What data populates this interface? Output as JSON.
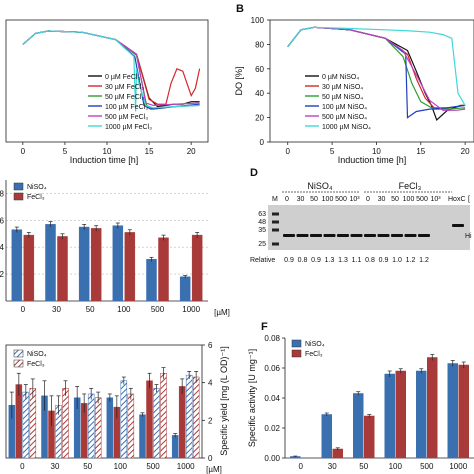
{
  "panels": {
    "a": {
      "letter": "",
      "xlabel": "Induction time [h]",
      "xticks": [
        "0",
        "5",
        "10",
        "15",
        "20"
      ],
      "xlim": [
        -2,
        22
      ],
      "ylim": [
        0,
        100
      ],
      "legend": [
        "0 µM FeCl₃",
        "30 µM FeCl₃",
        "50 µM FeCl₃",
        "100 µM FeCl₃",
        "500 µM FeCl₃",
        "1000 µM FeCl₃"
      ],
      "colors": [
        "#111111",
        "#d62728",
        "#2ca02c",
        "#1f3fbf",
        "#c040c0",
        "#3fd8d8"
      ]
    },
    "b": {
      "letter": "B",
      "ylabel": "DO [%]",
      "xlabel": "Induction time [h]",
      "yticks": [
        "0",
        "20",
        "40",
        "60",
        "80",
        "100"
      ],
      "xticks": [
        "0",
        "5",
        "10",
        "15",
        "20"
      ],
      "xlim": [
        -2,
        21
      ],
      "ylim": [
        0,
        100
      ],
      "legend": [
        "0 µM NiSO₄",
        "30 µM NiSO₄",
        "50 µM NiSO₄",
        "100 µM NiSO₄",
        "500 µM NiSO₄",
        "1000 µM NiSO₄"
      ],
      "colors": [
        "#111111",
        "#d62728",
        "#2ca02c",
        "#1f3fbf",
        "#c040c0",
        "#3fd8d8"
      ]
    },
    "c": {
      "letter": "",
      "yticks": [
        "2",
        "4",
        "6",
        "8"
      ],
      "legend": [
        "NiSO₄",
        "FeCl₃"
      ]
    },
    "d": {
      "letter": "D",
      "top_labels": {
        "ni": "NiSO₄",
        "fe": "FeCl₃"
      },
      "lane_M": "M",
      "lane_numbers": [
        "0",
        "30",
        "50",
        "100",
        "500",
        "10³",
        "0",
        "30",
        "50",
        "100",
        "500",
        "10³"
      ],
      "lane_hoxc": "HoxC",
      "lane_bracket": "[",
      "mw_markers": [
        "63",
        "48",
        "35",
        "25"
      ],
      "band_label": "Hi",
      "relative_label": "Relative",
      "relative_values": [
        "0.9",
        "0.8",
        "0.9",
        "1.3",
        "1.3",
        "1.1",
        "0.8",
        "0.9",
        "1.0",
        "1.2",
        "1.2"
      ]
    },
    "e": {
      "letter": "",
      "y2label": "Specific yield [mg (L OD)⁻¹]",
      "y2ticks": [
        "0",
        "2",
        "4",
        "6"
      ],
      "legend": [
        "NiSO₄",
        "FeCl₃"
      ]
    },
    "f": {
      "letter": "F",
      "ylabel": "Specific activity [U mg⁻¹]",
      "yticks": [
        "0.00",
        "0.02",
        "0.04",
        "0.06",
        "0.08"
      ],
      "legend": [
        "NiSO₄",
        "FeCl₃"
      ]
    }
  },
  "chart_data": [
    {
      "type": "line",
      "panel": "a",
      "xlabel": "Induction time [h]",
      "xlim": [
        -2,
        22
      ],
      "ylim": [
        0,
        100
      ],
      "series": [
        {
          "name": "0 µM FeCl₃",
          "color": "#111111",
          "x": [
            0,
            1.5,
            3,
            7,
            11,
            13.5,
            15,
            16,
            18,
            19,
            20,
            21
          ],
          "y": [
            80,
            89,
            91,
            90,
            84,
            72,
            36,
            29,
            31,
            31,
            33,
            33
          ]
        },
        {
          "name": "30 µM FeCl₃",
          "color": "#d62728",
          "x": [
            0,
            1.5,
            3,
            7,
            11,
            13.5,
            15,
            16,
            17,
            17.6,
            18.3,
            19,
            19.5,
            20,
            20.5,
            21
          ],
          "y": [
            80,
            89,
            91,
            90,
            84,
            72,
            35,
            31,
            31,
            48,
            60,
            58,
            48,
            38,
            44,
            60
          ]
        },
        {
          "name": "50 µM FeCl₃",
          "color": "#2ca02c",
          "x": [
            0,
            1.5,
            3,
            7,
            11,
            13.5,
            14.7,
            15.5,
            18,
            21
          ],
          "y": [
            80,
            89,
            91,
            90,
            84,
            71,
            30,
            27,
            29,
            30
          ]
        },
        {
          "name": "100 µM FeCl₃",
          "color": "#1f3fbf",
          "x": [
            0,
            1.5,
            3,
            7,
            11,
            13.3,
            14.4,
            15.2,
            18,
            21
          ],
          "y": [
            80,
            89,
            91,
            90,
            84,
            70,
            30,
            27,
            29,
            31
          ]
        },
        {
          "name": "500 µM FeCl₃",
          "color": "#c040c0",
          "x": [
            0,
            1.5,
            3,
            7,
            11,
            13.5,
            14.6,
            15.5,
            18,
            21
          ],
          "y": [
            80,
            89,
            91,
            90,
            84,
            72,
            32,
            30,
            31,
            32
          ]
        },
        {
          "name": "1000 µM FeCl₃",
          "color": "#3fd8d8",
          "x": [
            0,
            1.5,
            3,
            7,
            11,
            13.2,
            13.4,
            13.5,
            13.8,
            14.6,
            15.5,
            18,
            21
          ],
          "y": [
            80,
            89,
            91,
            90,
            84,
            70,
            25,
            60,
            48,
            30,
            28,
            29,
            30
          ]
        }
      ]
    },
    {
      "type": "line",
      "panel": "b",
      "xlabel": "Induction time [h]",
      "ylabel": "DO [%]",
      "xlim": [
        -2,
        21
      ],
      "ylim": [
        0,
        100
      ],
      "series": [
        {
          "name": "0 µM NiSO₄",
          "color": "#111111",
          "x": [
            0,
            1.5,
            3,
            7,
            11,
            13.5,
            14.5,
            15.5,
            16.2,
            16.8,
            18,
            19.5,
            20
          ],
          "y": [
            78,
            92,
            94,
            92,
            85,
            75,
            58,
            40,
            30,
            18,
            26,
            30,
            30
          ]
        },
        {
          "name": "30 µM NiSO₄",
          "color": "#d62728",
          "x": [
            0,
            1.5,
            3,
            7,
            11,
            13.5,
            14.5,
            15.5,
            16.5,
            18,
            20
          ],
          "y": [
            78,
            92,
            94,
            92,
            85,
            72,
            52,
            36,
            28,
            28,
            30
          ]
        },
        {
          "name": "50 µM NiSO₄",
          "color": "#2ca02c",
          "x": [
            0,
            1.5,
            3,
            7,
            11,
            13,
            14,
            15,
            16.5,
            18,
            20
          ],
          "y": [
            78,
            92,
            94,
            92,
            85,
            70,
            48,
            33,
            27,
            27,
            28
          ]
        },
        {
          "name": "100 µM NiSO₄",
          "color": "#1f3fbf",
          "x": [
            0,
            1.5,
            3,
            7,
            11,
            13.3,
            13.5,
            14.5,
            16,
            18,
            20
          ],
          "y": [
            78,
            92,
            94,
            92,
            85,
            72,
            20,
            25,
            27,
            28,
            30
          ]
        },
        {
          "name": "500 µM NiSO₄",
          "color": "#c040c0",
          "x": [
            0,
            1.5,
            3,
            7,
            11,
            13,
            14.5,
            16,
            17.5,
            19,
            20
          ],
          "y": [
            78,
            92,
            94,
            92,
            85,
            75,
            55,
            34,
            26,
            26,
            27
          ]
        },
        {
          "name": "1000 µM NiSO₄",
          "color": "#3fd8d8",
          "x": [
            0,
            1.5,
            3,
            7,
            11,
            14,
            16,
            17.5,
            18.5,
            19.2,
            20
          ],
          "y": [
            78,
            92,
            94,
            93,
            92,
            91,
            90,
            88,
            85,
            40,
            30
          ]
        }
      ]
    },
    {
      "type": "bar",
      "panel": "c",
      "categories": [
        "0",
        "30",
        "50",
        "100",
        "500",
        "1000"
      ],
      "x_unit_label": "[µM]",
      "ylim": [
        0,
        9
      ],
      "series": [
        {
          "name": "NiSO₄",
          "color": "#3a6fb0",
          "values": [
            5.3,
            5.7,
            5.5,
            5.6,
            3.1,
            1.8
          ],
          "errors": [
            0.2,
            0.2,
            0.2,
            0.2,
            0.15,
            0.1
          ]
        },
        {
          "name": "FeCl₃",
          "color": "#a83a3a",
          "values": [
            4.9,
            4.8,
            5.4,
            5.1,
            4.7,
            4.9
          ],
          "errors": [
            0.2,
            0.2,
            0.2,
            0.2,
            0.2,
            0.2
          ]
        }
      ]
    },
    {
      "type": "bar",
      "panel": "e",
      "categories": [
        "0",
        "30",
        "50",
        "100",
        "500",
        "1000"
      ],
      "x_unit_label": "[µM]",
      "y2label": "Specific yield [mg (L OD)⁻¹]",
      "y2lim": [
        0,
        6
      ],
      "series": [
        {
          "name": "NiSO₄",
          "color": "#3a6fb0",
          "values": [
            2.8,
            3.3,
            3.2,
            3.2,
            2.3,
            1.2
          ],
          "errors": [
            0.7,
            0.8,
            0.6,
            0.2,
            0.1,
            0.1
          ]
        },
        {
          "name": "FeCl₃",
          "color": "#a83a3a",
          "values": [
            3.9,
            2.5,
            2.9,
            2.7,
            4.1,
            3.8
          ],
          "errors": [
            0.6,
            0.8,
            0.5,
            0.6,
            0.4,
            0.4
          ]
        },
        {
          "name": "NiSO₄ (yield)",
          "color": "#3a6fb0",
          "values": [
            3.5,
            2.8,
            3.4,
            4.1,
            3.7,
            4.4
          ],
          "errors": [
            0.4,
            0.5,
            0.3,
            0.2,
            0.2,
            0.2
          ]
        },
        {
          "name": "FeCl₃ (yield)",
          "color": "#a83a3a",
          "values": [
            3.7,
            3.7,
            3.2,
            3.4,
            4.5,
            4.3
          ],
          "errors": [
            0.5,
            0.4,
            0.3,
            0.3,
            0.3,
            0.3
          ]
        }
      ]
    },
    {
      "type": "bar",
      "panel": "f",
      "categories": [
        "0",
        "30",
        "50",
        "100",
        "500",
        "1000"
      ],
      "x_unit_label": "[µM]",
      "ylabel": "Specific activity [U mg⁻¹]",
      "ylim": [
        0,
        0.08
      ],
      "series": [
        {
          "name": "NiSO₄",
          "color": "#3a6fb0",
          "values": [
            0.001,
            0.029,
            0.043,
            0.056,
            0.058,
            0.063
          ],
          "errors": [
            0.0003,
            0.001,
            0.0012,
            0.002,
            0.0015,
            0.002
          ]
        },
        {
          "name": "FeCl₃",
          "color": "#a83a3a",
          "values": [
            0.0,
            0.006,
            0.028,
            0.058,
            0.067,
            0.062
          ],
          "errors": [
            0.0,
            0.0008,
            0.001,
            0.0015,
            0.002,
            0.002
          ]
        }
      ]
    }
  ]
}
